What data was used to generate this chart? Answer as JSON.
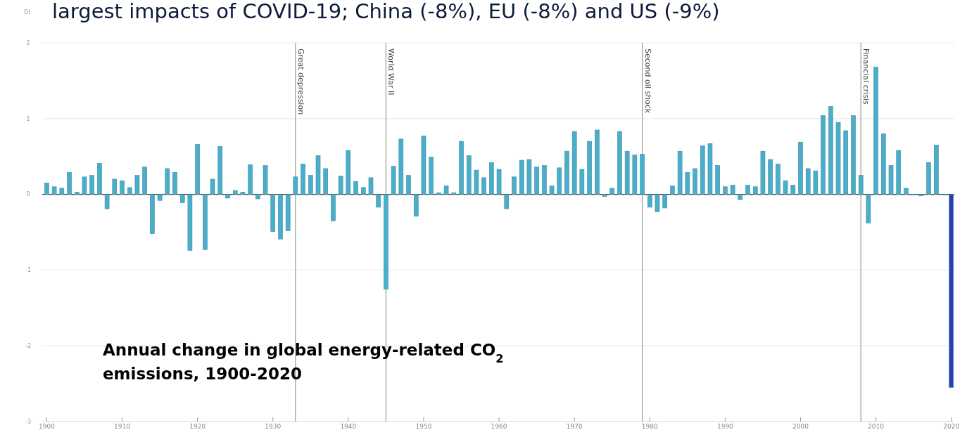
{
  "chart_data": {
    "type": "bar",
    "title": "largest impacts of COVID-19; China (-8%), EU (-8%) and US (-9%)",
    "subtitle": "Annual change in global energy-related CO$_{2}$ emissions, 1900-2020",
    "ylabel": "Gt",
    "x": [
      1900,
      1901,
      1902,
      1903,
      1904,
      1905,
      1906,
      1907,
      1908,
      1909,
      1910,
      1911,
      1912,
      1913,
      1914,
      1915,
      1916,
      1917,
      1918,
      1919,
      1920,
      1921,
      1922,
      1923,
      1924,
      1925,
      1926,
      1927,
      1928,
      1929,
      1930,
      1931,
      1932,
      1933,
      1934,
      1935,
      1936,
      1937,
      1938,
      1939,
      1940,
      1941,
      1942,
      1943,
      1944,
      1945,
      1946,
      1947,
      1948,
      1949,
      1950,
      1951,
      1952,
      1953,
      1954,
      1955,
      1956,
      1957,
      1958,
      1959,
      1960,
      1961,
      1962,
      1963,
      1964,
      1965,
      1966,
      1967,
      1968,
      1969,
      1970,
      1971,
      1972,
      1973,
      1974,
      1975,
      1976,
      1977,
      1978,
      1979,
      1980,
      1981,
      1982,
      1983,
      1984,
      1985,
      1986,
      1987,
      1988,
      1989,
      1990,
      1991,
      1992,
      1993,
      1994,
      1995,
      1996,
      1997,
      1998,
      1999,
      2000,
      2001,
      2002,
      2003,
      2004,
      2005,
      2006,
      2007,
      2008,
      2009,
      2010,
      2011,
      2012,
      2013,
      2014,
      2015,
      2016,
      2017,
      2018,
      2019,
      2020
    ],
    "values": [
      0.15,
      0.1,
      0.08,
      0.29,
      0.03,
      0.23,
      0.25,
      0.41,
      -0.19,
      0.2,
      0.18,
      0.09,
      0.25,
      0.36,
      -0.52,
      -0.08,
      0.34,
      0.29,
      -0.11,
      -0.74,
      0.66,
      -0.73,
      0.2,
      0.63,
      -0.05,
      0.05,
      0.03,
      0.39,
      -0.06,
      0.38,
      -0.49,
      -0.59,
      -0.48,
      0.23,
      0.4,
      0.25,
      0.51,
      0.34,
      -0.35,
      0.24,
      0.58,
      0.17,
      0.09,
      0.22,
      -0.17,
      -1.25,
      0.37,
      0.73,
      0.25,
      -0.29,
      0.77,
      0.49,
      0.02,
      0.11,
      0.02,
      0.7,
      0.51,
      0.32,
      0.22,
      0.42,
      0.33,
      -0.19,
      0.23,
      0.45,
      0.46,
      0.36,
      0.38,
      0.11,
      0.35,
      0.57,
      0.83,
      0.33,
      0.7,
      0.85,
      -0.03,
      0.08,
      0.83,
      0.57,
      0.52,
      0.53,
      -0.17,
      -0.23,
      -0.18,
      0.11,
      0.57,
      0.29,
      0.34,
      0.64,
      0.67,
      0.38,
      0.1,
      0.12,
      -0.07,
      0.12,
      0.1,
      0.57,
      0.46,
      0.4,
      0.18,
      0.12,
      0.69,
      0.34,
      0.31,
      1.04,
      1.16,
      0.95,
      0.84,
      1.04,
      0.25,
      -0.38,
      1.68,
      0.8,
      0.38,
      0.58,
      0.08,
      -0.01,
      -0.02,
      0.42,
      0.65,
      -0.01,
      -2.55
    ],
    "colors": [
      "#4aaecb",
      "#4aaecb",
      "#4aaecb",
      "#4aaecb",
      "#4aaecb",
      "#4aaecb",
      "#4aaecb",
      "#4aaecb",
      "#4aaecb",
      "#4aaecb",
      "#4aaecb",
      "#4aaecb",
      "#4aaecb",
      "#4aaecb",
      "#4aaecb",
      "#4aaecb",
      "#4aaecb",
      "#4aaecb",
      "#4aaecb",
      "#4aaecb",
      "#4aaecb",
      "#4aaecb",
      "#4aaecb",
      "#4aaecb",
      "#4aaecb",
      "#4aaecb",
      "#4aaecb",
      "#4aaecb",
      "#4aaecb",
      "#4aaecb",
      "#4aaecb",
      "#4aaecb",
      "#4aaecb",
      "#4aaecb",
      "#4aaecb",
      "#4aaecb",
      "#4aaecb",
      "#4aaecb",
      "#4aaecb",
      "#4aaecb",
      "#4aaecb",
      "#4aaecb",
      "#4aaecb",
      "#4aaecb",
      "#4aaecb",
      "#4aaecb",
      "#4aaecb",
      "#4aaecb",
      "#4aaecb",
      "#4aaecb",
      "#4aaecb",
      "#4aaecb",
      "#4aaecb",
      "#4aaecb",
      "#4aaecb",
      "#4aaecb",
      "#4aaecb",
      "#4aaecb",
      "#4aaecb",
      "#4aaecb",
      "#4aaecb",
      "#4aaecb",
      "#4aaecb",
      "#4aaecb",
      "#4aaecb",
      "#4aaecb",
      "#4aaecb",
      "#4aaecb",
      "#4aaecb",
      "#4aaecb",
      "#4aaecb",
      "#4aaecb",
      "#4aaecb",
      "#4aaecb",
      "#4aaecb",
      "#4aaecb",
      "#4aaecb",
      "#4aaecb",
      "#4aaecb",
      "#4aaecb",
      "#4aaecb",
      "#4aaecb",
      "#4aaecb",
      "#4aaecb",
      "#4aaecb",
      "#4aaecb",
      "#4aaecb",
      "#4aaecb",
      "#4aaecb",
      "#4aaecb",
      "#4aaecb",
      "#4aaecb",
      "#4aaecb",
      "#4aaecb",
      "#4aaecb",
      "#4aaecb",
      "#4aaecb",
      "#4aaecb",
      "#4aaecb",
      "#4aaecb",
      "#4aaecb",
      "#4aaecb",
      "#4aaecb",
      "#4aaecb",
      "#4aaecb",
      "#4aaecb",
      "#4aaecb",
      "#4aaecb",
      "#4aaecb",
      "#4aaecb",
      "#4aaecb",
      "#4aaecb",
      "#4aaecb",
      "#4aaecb",
      "#4aaecb",
      "#4aaecb",
      "#4aaecb",
      "#4aaecb",
      "#4aaecb",
      "#4aaecb",
      "#2b3fb3"
    ],
    "xlim": [
      1899.4,
      2020.4
    ],
    "xticks": [
      1900,
      1910,
      1920,
      1930,
      1940,
      1950,
      1960,
      1970,
      1980,
      1990,
      2000,
      2010,
      2020
    ],
    "ylim": [
      -3,
      2
    ],
    "yticks": [
      -3,
      -2,
      -1,
      0,
      1,
      2
    ],
    "grid": "y",
    "ref_lines": [
      {
        "axis": "x",
        "value": 1933,
        "label": "Great depression"
      },
      {
        "axis": "x",
        "value": 1945,
        "label": "World War II"
      },
      {
        "axis": "x",
        "value": 1979,
        "label": "Second oil shock"
      },
      {
        "axis": "x",
        "value": 2008,
        "label": "Financial crisis"
      }
    ]
  }
}
